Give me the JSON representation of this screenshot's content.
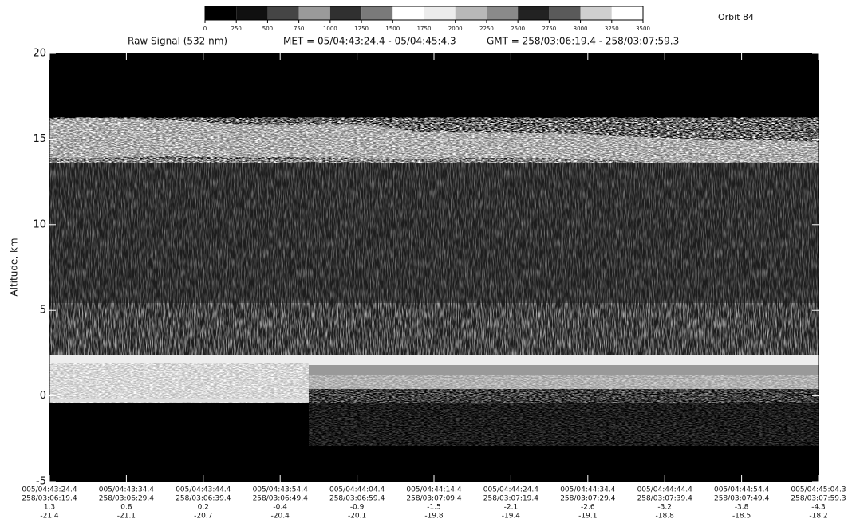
{
  "chart_data": {
    "type": "heatmap",
    "title": "Raw Signal (532 nm)",
    "subtitle_met": "MET = 05/04:43:24.4 - 05/04:45:4.3",
    "subtitle_gmt": "GMT = 258/03:06:19.4 - 258/03:07:59.3",
    "annotation": "Orbit 84",
    "ylabel": "Altitude, km",
    "ylim": [
      -5,
      20
    ],
    "yticks": [
      -5,
      0,
      5,
      10,
      15,
      20
    ],
    "colorbar": {
      "lim": [
        0,
        3500
      ],
      "ticks": [
        0,
        250,
        500,
        750,
        1000,
        1250,
        1500,
        1750,
        2000,
        2250,
        2500,
        2750,
        3000,
        3250,
        3500
      ],
      "colors": [
        "#000000",
        "#101010",
        "#454545",
        "#9a9a9a",
        "#303030",
        "#7a7a7a",
        "#ffffff",
        "#ececec",
        "#b8b8b8",
        "#8a8a8a",
        "#222222",
        "#5a5a5a",
        "#cfcfcf",
        "#ffffff"
      ]
    },
    "x_tick_labels": [
      [
        "005/04:43:24.4",
        "258/03:06:19.4",
        1.3,
        -21.4
      ],
      [
        "005/04:43:34.4",
        "258/03:06:29.4",
        0.8,
        -21.1
      ],
      [
        "005/04:43:44.4",
        "258/03:06:39.4",
        0.2,
        -20.7
      ],
      [
        "005/04:43:54.4",
        "258/03:06:49.4",
        -0.4,
        -20.4
      ],
      [
        "005/04:44:04.4",
        "258/03:06:59.4",
        -0.9,
        -20.1
      ],
      [
        "005/04:44:14.4",
        "258/03:07:09.4",
        -1.5,
        -19.8
      ],
      [
        "005/04:44:24.4",
        "258/03:07:19.4",
        -2.1,
        -19.4
      ],
      [
        "005/04:44:34.4",
        "258/03:07:29.4",
        -2.6,
        -19.1
      ],
      [
        "005/04:44:44.4",
        "258/03:07:39.4",
        -3.2,
        -18.8
      ],
      [
        "005/04:44:54.4",
        "258/03:07:49.4",
        -3.8,
        -18.5
      ],
      [
        "005/04:45:04.3",
        "258/03:07:59.3",
        -4.3,
        -18.2
      ]
    ]
  }
}
